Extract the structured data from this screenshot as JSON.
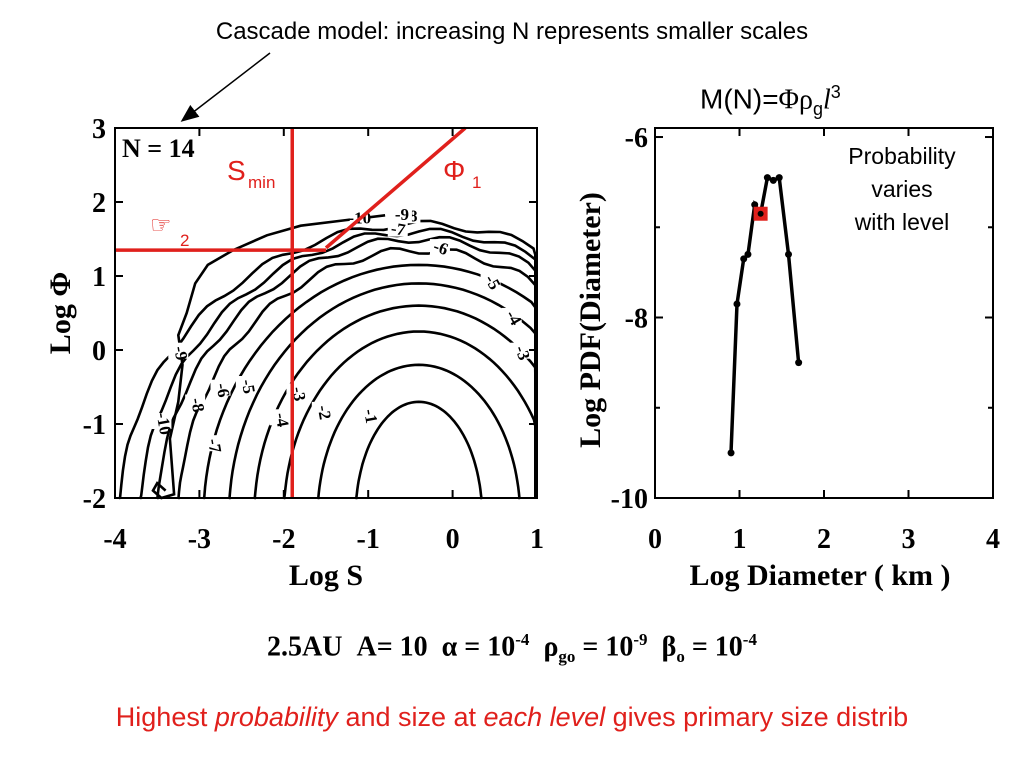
{
  "colors": {
    "accent": "#e0201c",
    "ink": "#000000"
  },
  "header": {
    "caption": "Cascade model: increasing N represents smaller scales",
    "formula_prefix": "M(N)=",
    "formula_phi": "Φρ",
    "formula_sub": "g",
    "formula_l": "l",
    "formula_sup": "3"
  },
  "prob_note": {
    "line1": "Probability",
    "line2": "varies",
    "line3": "with level"
  },
  "params": {
    "au": "2.5AU",
    "a_label": "A= 10",
    "alpha_label": "α = 10",
    "alpha_exp": "-4",
    "rho_label": "ρ",
    "rho_sub": "go",
    "rho_eq": " = 10",
    "rho_exp": "-9",
    "beta_label": "β",
    "beta_sub": "o",
    "beta_eq": " = 10",
    "beta_exp": "-4"
  },
  "footer": {
    "part1": "Highest ",
    "part2": "probability",
    "part3": " and size at ",
    "part4": "each level",
    "part5": " gives primary size distrib"
  },
  "chart_data": [
    {
      "type": "contour",
      "xlabel": "Log S",
      "ylabel": "Log Φ",
      "xlim": [
        -4,
        1
      ],
      "ylim": [
        -2,
        3
      ],
      "xticks": [
        "-4",
        "-3",
        "-2",
        "-1",
        "0",
        "1"
      ],
      "yticks": [
        "3",
        "2",
        "1",
        "0",
        "-1",
        "-2"
      ],
      "panel_label": "N = 14",
      "contour_labels": [
        {
          "text": "-1",
          "x": -1.0,
          "y": -0.9,
          "rot": 80
        },
        {
          "text": "-2",
          "x": -1.55,
          "y": -0.85,
          "rot": 80
        },
        {
          "text": "-3",
          "x": -1.85,
          "y": -0.6,
          "rot": 80
        },
        {
          "text": "-4",
          "x": -2.05,
          "y": -0.95,
          "rot": 80
        },
        {
          "text": "-5",
          "x": -2.45,
          "y": -0.5,
          "rot": 80
        },
        {
          "text": "-6",
          "x": -2.75,
          "y": -0.55,
          "rot": 80
        },
        {
          "text": "-7",
          "x": -2.85,
          "y": -1.3,
          "rot": 80
        },
        {
          "text": "-8",
          "x": -3.05,
          "y": -0.75,
          "rot": 80
        },
        {
          "text": "-9",
          "x": -3.25,
          "y": -0.05,
          "rot": 80
        },
        {
          "text": "-10",
          "x": -3.45,
          "y": -1.0,
          "rot": 80
        },
        {
          "text": "-5",
          "x": 0.45,
          "y": 0.9,
          "rot": 60
        },
        {
          "text": "-4",
          "x": 0.7,
          "y": 0.42,
          "rot": 60
        },
        {
          "text": "-3",
          "x": 0.8,
          "y": -0.05,
          "rot": 70
        },
        {
          "text": "-6",
          "x": -0.15,
          "y": 1.35,
          "rot": 20
        },
        {
          "text": "-7",
          "x": -0.65,
          "y": 1.6,
          "rot": 10
        },
        {
          "text": "-8",
          "x": -0.5,
          "y": 1.78,
          "rot": 0
        },
        {
          "text": "-9",
          "x": -0.6,
          "y": 1.8,
          "rot": 0
        },
        {
          "text": "-10",
          "x": -1.1,
          "y": 1.75,
          "rot": 0
        }
      ],
      "annotations": {
        "smin_label": "S",
        "smin_sub": "min",
        "phi1_label": "Φ",
        "phi1_sub": "1",
        "phi2_label": "☞",
        "phi2_sub": "2",
        "smin_x": -1.9,
        "phi2_y": 1.35,
        "phi1_line": [
          [
            -1.5,
            1.38
          ],
          [
            0.15,
            3.0
          ]
        ]
      }
    },
    {
      "type": "line",
      "xlabel": "Log Diameter ( km )",
      "ylabel": "Log PDF(Diameter)",
      "xlim": [
        0,
        4
      ],
      "ylim": [
        -10,
        -5.9
      ],
      "xticks": [
        "0",
        "1",
        "2",
        "3",
        "4"
      ],
      "yticks": [
        "-6",
        "-8",
        "-10"
      ],
      "x": [
        0.9,
        0.97,
        1.05,
        1.1,
        1.18,
        1.25,
        1.33,
        1.4,
        1.47,
        1.58,
        1.7
      ],
      "y": [
        -9.5,
        -7.85,
        -7.35,
        -7.3,
        -6.75,
        -6.85,
        -6.45,
        -6.48,
        -6.45,
        -7.3,
        -8.5
      ],
      "highlight": {
        "x": 1.25,
        "y": -6.85
      }
    }
  ]
}
